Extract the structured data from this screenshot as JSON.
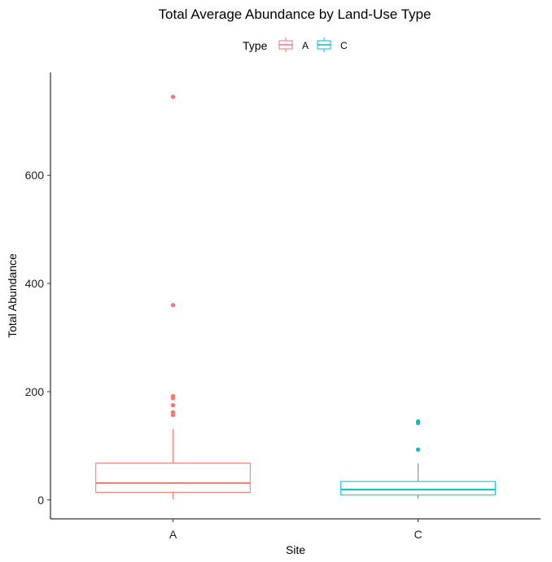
{
  "chart_data": {
    "type": "boxplot",
    "title": "Total Average Abundance by Land-Use Type",
    "xlabel": "Site",
    "ylabel": "Total Abundance",
    "categories": [
      "A",
      "C"
    ],
    "ylim": [
      -35,
      790
    ],
    "yticks": [
      0,
      200,
      400,
      600
    ],
    "legend": {
      "title": "Type",
      "position": "top",
      "entries": [
        "A",
        "C"
      ]
    },
    "series": [
      {
        "name": "A",
        "color": "#F8766D",
        "category": "A",
        "whisker_low": 1,
        "q1": 14,
        "median": 31,
        "q3": 68,
        "whisker_high": 131,
        "outliers": [
          745,
          360,
          192,
          188,
          175,
          162,
          157
        ]
      },
      {
        "name": "C",
        "color": "#00BFC4",
        "category": "C",
        "whisker_low": 2,
        "q1": 9,
        "median": 19,
        "q3": 34,
        "whisker_high": 68,
        "outliers": [
          145,
          142,
          93
        ]
      }
    ],
    "grid": false
  }
}
